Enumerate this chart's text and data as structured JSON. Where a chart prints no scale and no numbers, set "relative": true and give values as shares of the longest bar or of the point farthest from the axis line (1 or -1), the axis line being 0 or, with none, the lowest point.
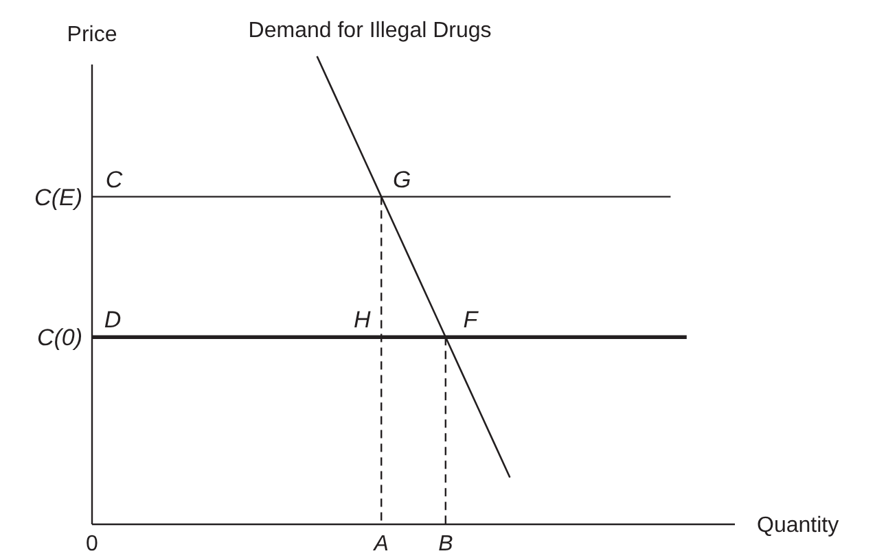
{
  "chart_data": {
    "type": "line",
    "xlabel": "Quantity",
    "ylabel": "Price",
    "relative": true,
    "grid": false,
    "marker": "none",
    "categories": [
      "0",
      null,
      null,
      null,
      null,
      null,
      null,
      null,
      null,
      null,
      null,
      null,
      null,
      null,
      null,
      null,
      null,
      null,
      "A",
      null,
      null,
      null,
      "B",
      null,
      null,
      null,
      null,
      null,
      null,
      null,
      null,
      null,
      null,
      null,
      null,
      null,
      null,
      null,
      null,
      null,
      null
    ],
    "series": [
      {
        "name": "Demand for Illegal Drugs",
        "color": "#231f20",
        "values": [
          null,
          null,
          null,
          null,
          null,
          null,
          null,
          null,
          null,
          null,
          null,
          null,
          null,
          null,
          1,
          0.925,
          0.85,
          0.775,
          0.7,
          0.625,
          0.55,
          0.475,
          0.4,
          0.325,
          0.25,
          0.175,
          0.1,
          null,
          null,
          null,
          null,
          null,
          null,
          null,
          null,
          null,
          null,
          null,
          null,
          null,
          null
        ]
      },
      {
        "color": "#231f20",
        "values": [
          0.7,
          0.7,
          0.7,
          0.7,
          0.7,
          0.7,
          0.7,
          0.7,
          0.7,
          0.7,
          0.7,
          0.7,
          0.7,
          0.7,
          0.7,
          0.7,
          0.7,
          0.7,
          0.7,
          0.7,
          0.7,
          0.7,
          0.7,
          0.7,
          0.7,
          0.7,
          0.7,
          0.7,
          0.7,
          0.7,
          0.7,
          0.7,
          0.7,
          0.7,
          0.7,
          0.7,
          0.7,
          null,
          null,
          null,
          null
        ]
      },
      {
        "color": "#231f20",
        "values": [
          0.4,
          0.4,
          0.4,
          0.4,
          0.4,
          0.4,
          0.4,
          0.4,
          0.4,
          0.4,
          0.4,
          0.4,
          0.4,
          0.4,
          0.4,
          0.4,
          0.4,
          0.4,
          0.4,
          0.4,
          0.4,
          0.4,
          0.4,
          0.4,
          0.4,
          0.4,
          0.4,
          0.4,
          0.4,
          0.4,
          0.4,
          0.4,
          0.4,
          0.4,
          0.4,
          0.4,
          0.4,
          0.4,
          null,
          null,
          null
        ]
      },
      {
        "color": "#231f20",
        "x": [
          "A",
          "A"
        ],
        "values": [
          0.7,
          0
        ],
        "line_style": "dashed"
      },
      {
        "color": "#231f20",
        "x": [
          "B",
          "B"
        ],
        "values": [
          0.4,
          0
        ],
        "line_style": "dashed"
      }
    ],
    "annotations": [
      {
        "text": "C",
        "x": "0",
        "y": 0.7
      },
      {
        "text": "G",
        "x": "A",
        "y": 0.7
      },
      {
        "text": "D",
        "x": "0",
        "y": 0.4
      },
      {
        "text": "H",
        "x": "A",
        "y": 0.4
      },
      {
        "text": "F",
        "x": "B",
        "y": 0.4
      },
      {
        "text": "C(E)",
        "x": "0",
        "y": 0.7
      },
      {
        "text": "C(0)",
        "x": "0",
        "y": 0.4
      }
    ]
  }
}
